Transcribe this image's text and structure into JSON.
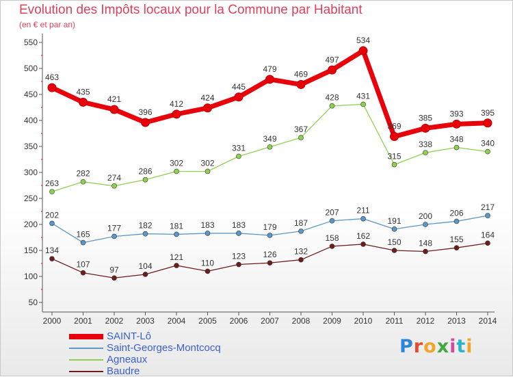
{
  "chart_data": {
    "type": "line",
    "title": "Evolution des Impôts locaux pour la Commune par Habitant",
    "subtitle": "(en € et par an)",
    "xlabel": "",
    "ylabel": "",
    "ylim": [
      50,
      550
    ],
    "yticks": [
      50,
      100,
      150,
      200,
      250,
      300,
      350,
      400,
      450,
      500,
      550
    ],
    "categories": [
      "2000",
      "2001",
      "2002",
      "2003",
      "2004",
      "2005",
      "2006",
      "2007",
      "2008",
      "2009",
      "2010",
      "2011",
      "2012",
      "2013",
      "2014"
    ],
    "grid": false,
    "legend_position": "bottom-left",
    "series": [
      {
        "name": "SAINT-Lô",
        "color": "#e8000b",
        "values": [
          463,
          435,
          421,
          396,
          412,
          424,
          445,
          479,
          469,
          497,
          534,
          369,
          385,
          393,
          395
        ]
      },
      {
        "name": "Saint-Georges-Montcocq",
        "color": "#5b97c8",
        "values": [
          202,
          165,
          177,
          182,
          181,
          183,
          183,
          179,
          187,
          207,
          211,
          191,
          200,
          206,
          217
        ]
      },
      {
        "name": "Agneaux",
        "color": "#8fd14f",
        "values": [
          263,
          282,
          274,
          286,
          302,
          302,
          331,
          349,
          367,
          428,
          431,
          315,
          338,
          348,
          340
        ]
      },
      {
        "name": "Baudre",
        "color": "#6e1c1c",
        "values": [
          134,
          107,
          97,
          104,
          121,
          110,
          123,
          126,
          132,
          158,
          162,
          150,
          148,
          155,
          164
        ]
      }
    ]
  },
  "logo": {
    "letters": [
      "P",
      "r",
      "o",
      "x",
      "i",
      "t",
      "i"
    ]
  }
}
